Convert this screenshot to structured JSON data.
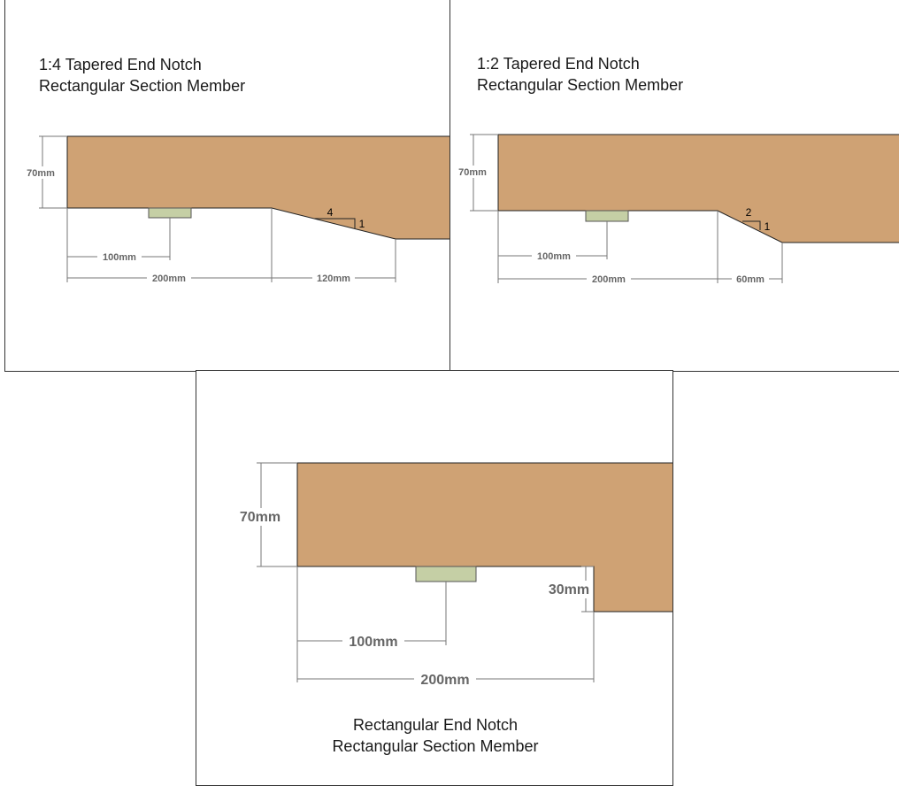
{
  "colors": {
    "timber": "#CFA274",
    "pad": "#C5CFA5",
    "outline": "#222222",
    "dim": "#777777",
    "dim_text": "#666666"
  },
  "panels": {
    "taper_1_4": {
      "title_line1": "1:4 Tapered End Notch",
      "title_line2": "Rectangular Section Member",
      "depth_label": "70mm",
      "bearing_label": "100mm",
      "notch_start_label": "200mm",
      "taper_length_label": "120mm",
      "slope_run": "4",
      "slope_rise": "1"
    },
    "taper_1_2": {
      "title_line1": "1:2 Tapered End Notch",
      "title_line2": "Rectangular Section Member",
      "depth_label": "70mm",
      "bearing_label": "100mm",
      "notch_start_label": "200mm",
      "taper_length_label": "60mm",
      "slope_run": "2",
      "slope_rise": "1"
    },
    "rectangular": {
      "title_line1": "Rectangular End Notch",
      "title_line2": "Rectangular Section Member",
      "depth_label": "70mm",
      "notch_depth_label": "30mm",
      "bearing_label": "100mm",
      "notch_start_label": "200mm"
    }
  }
}
